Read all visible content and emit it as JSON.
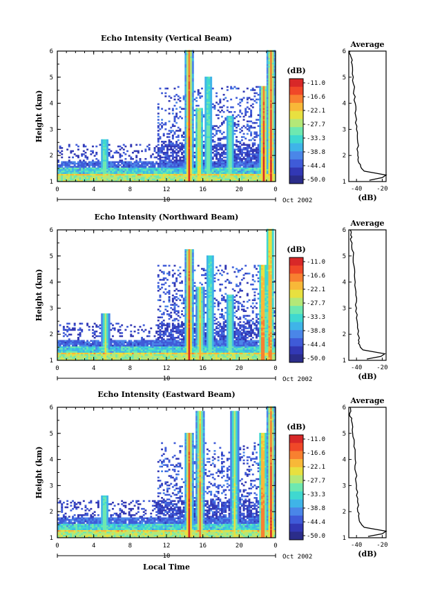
{
  "chart_data": [
    {
      "type": "heatmap",
      "title": "Echo Intensity (Vertical Beam)",
      "ylabel": "Height (km)",
      "xlabel": "",
      "ylim": [
        1,
        6
      ],
      "xlim": [
        0,
        24
      ],
      "x_ticks": [
        "0",
        "4",
        "8",
        "12",
        "16",
        "20",
        "0"
      ],
      "y_ticks": [
        "1",
        "2",
        "3",
        "4",
        "5",
        "6"
      ],
      "date_marker": "10",
      "date_label": "Oct 2002",
      "colorbar": {
        "unit": "(dB)",
        "labels": [
          "-11.0",
          "-16.6",
          "-22.1",
          "-27.7",
          "-33.3",
          "-38.8",
          "-44.4",
          "-50.0"
        ]
      },
      "precip_events": [
        {
          "hour": 5.2,
          "top_km": 2.6,
          "intensity": 0.45
        },
        {
          "hour": 14.5,
          "top_km": 6.0,
          "intensity": 1.0
        },
        {
          "hour": 15.6,
          "top_km": 3.8,
          "intensity": 0.7
        },
        {
          "hour": 16.6,
          "top_km": 5.0,
          "intensity": 0.45
        },
        {
          "hour": 19.0,
          "top_km": 3.5,
          "intensity": 0.5
        },
        {
          "hour": 22.7,
          "top_km": 4.6,
          "intensity": 1.0
        },
        {
          "hour": 23.5,
          "top_km": 6.0,
          "intensity": 0.95
        }
      ],
      "average_profile": {
        "title": "Average",
        "xlabel": "(dB)",
        "x_ticks": [
          "-40",
          "-20"
        ],
        "xlim": [
          -46,
          -17
        ],
        "heights": [
          1.05,
          1.15,
          1.25,
          1.32,
          1.4,
          1.5,
          1.7,
          2.0,
          2.5,
          3.0,
          3.5,
          4.0,
          4.5,
          5.0,
          5.5,
          5.8,
          6.0
        ],
        "values": [
          -30,
          -20,
          -17,
          -25,
          -34,
          -36,
          -38,
          -39,
          -39,
          -40,
          -40.5,
          -41,
          -42,
          -42.5,
          -43.5,
          -44.5,
          -45
        ]
      }
    },
    {
      "type": "heatmap",
      "title": "Echo Intensity (Northward Beam)",
      "ylabel": "Height (km)",
      "xlabel": "",
      "ylim": [
        1,
        6
      ],
      "xlim": [
        0,
        24
      ],
      "x_ticks": [
        "0",
        "4",
        "8",
        "12",
        "16",
        "20",
        "0"
      ],
      "y_ticks": [
        "1",
        "2",
        "3",
        "4",
        "5",
        "6"
      ],
      "date_marker": "10",
      "date_label": "Oct 2002",
      "colorbar": {
        "unit": "(dB)",
        "labels": [
          "-11.0",
          "-16.6",
          "-22.1",
          "-27.7",
          "-33.3",
          "-38.8",
          "-44.4",
          "-50.0"
        ]
      },
      "precip_events": [
        {
          "hour": 5.3,
          "top_km": 2.8,
          "intensity": 0.55
        },
        {
          "hour": 14.5,
          "top_km": 5.2,
          "intensity": 1.0
        },
        {
          "hour": 15.7,
          "top_km": 3.8,
          "intensity": 0.7
        },
        {
          "hour": 16.8,
          "top_km": 5.0,
          "intensity": 0.45
        },
        {
          "hour": 19.0,
          "top_km": 3.5,
          "intensity": 0.5
        },
        {
          "hour": 22.6,
          "top_km": 4.6,
          "intensity": 1.0
        },
        {
          "hour": 23.4,
          "top_km": 6.0,
          "intensity": 0.95
        }
      ],
      "average_profile": {
        "title": "Average",
        "xlabel": "(dB)",
        "x_ticks": [
          "-40",
          "-20"
        ],
        "xlim": [
          -46,
          -17
        ],
        "heights": [
          1.05,
          1.15,
          1.25,
          1.32,
          1.4,
          1.5,
          1.7,
          2.0,
          2.5,
          3.0,
          3.5,
          4.0,
          4.5,
          5.0,
          5.5,
          5.8,
          6.0
        ],
        "values": [
          -32,
          -21,
          -18,
          -26,
          -35,
          -37,
          -38,
          -39,
          -39.5,
          -40,
          -40.5,
          -41,
          -41.5,
          -42.5,
          -43.5,
          -44.5,
          -45
        ]
      }
    },
    {
      "type": "heatmap",
      "title": "Echo Intensity (Eastward Beam)",
      "ylabel": "Height (km)",
      "xlabel": "Local Time",
      "ylim": [
        1,
        6
      ],
      "xlim": [
        0,
        24
      ],
      "x_ticks": [
        "0",
        "4",
        "8",
        "12",
        "16",
        "20",
        "0"
      ],
      "y_ticks": [
        "1",
        "2",
        "3",
        "4",
        "5",
        "6"
      ],
      "date_marker": "10",
      "date_label": "Oct 2002",
      "colorbar": {
        "unit": "(dB)",
        "labels": [
          "-11.0",
          "-16.6",
          "-22.1",
          "-27.7",
          "-33.3",
          "-38.8",
          "-44.4",
          "-50.0"
        ]
      },
      "precip_events": [
        {
          "hour": 5.2,
          "top_km": 2.6,
          "intensity": 0.5
        },
        {
          "hour": 14.5,
          "top_km": 5.0,
          "intensity": 1.0
        },
        {
          "hour": 15.7,
          "top_km": 5.8,
          "intensity": 0.8
        },
        {
          "hour": 19.5,
          "top_km": 5.8,
          "intensity": 0.55
        },
        {
          "hour": 22.6,
          "top_km": 5.0,
          "intensity": 1.0
        },
        {
          "hour": 23.5,
          "top_km": 6.0,
          "intensity": 0.95
        }
      ],
      "average_profile": {
        "title": "Average",
        "xlabel": "(dB)",
        "x_ticks": [
          "-40",
          "-20"
        ],
        "xlim": [
          -46,
          -17
        ],
        "heights": [
          1.05,
          1.15,
          1.25,
          1.32,
          1.4,
          1.5,
          1.7,
          2.0,
          2.5,
          3.0,
          3.5,
          4.0,
          4.5,
          5.0,
          5.5,
          5.8,
          6.0
        ],
        "values": [
          -31,
          -20,
          -17,
          -25,
          -34,
          -36,
          -38,
          -39,
          -39,
          -40,
          -40.5,
          -41,
          -42,
          -43,
          -44,
          -45,
          -45
        ]
      }
    }
  ],
  "colors": {
    "scale": [
      "#2b2d8a",
      "#3238b4",
      "#3f5bd8",
      "#4a86e8",
      "#3fb4e8",
      "#3fd8d0",
      "#6ee8b0",
      "#b4e878",
      "#e8e040",
      "#f8b838",
      "#f88030",
      "#f04828",
      "#d82828"
    ]
  }
}
